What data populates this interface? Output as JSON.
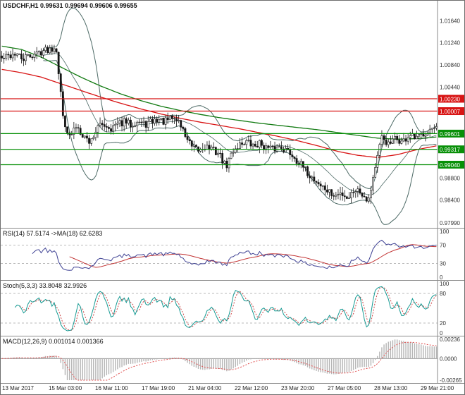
{
  "window": {
    "title": "USDCHF,H1"
  },
  "main_panel": {
    "title": "USDCHF,H1 0.99631 0.99694 0.99606 0.99655"
  },
  "rsi_panel": {
    "label": "RSI(14) 57.5174 ->MA(18) 62.6283"
  },
  "stoch_panel": {
    "label": "Stoch(5,3,3) 33.8048 32.9926"
  },
  "macd_panel": {
    "label": "MACD(12,26,9) 0.001014 0.001366"
  },
  "chart_data": {
    "type": "candlestick",
    "symbol": "USDCHF",
    "timeframe": "H1",
    "readout": {
      "open": 0.99631,
      "high": 0.99694,
      "low": 0.99606,
      "close": 0.99655
    },
    "x_labels": [
      "13 Mar 2017",
      "15 Mar 03:00",
      "16 Mar 11:00",
      "17 Mar 19:00",
      "21 Mar 04:00",
      "22 Mar 12:00",
      "23 Mar 20:00",
      "27 Mar 05:00",
      "28 Mar 13:00",
      "29 Mar 21:00"
    ],
    "main": {
      "ylim": [
        0.979,
        1.02
      ],
      "candle_count": 200,
      "y_axis_labels": [
        {
          "text": "1.01640",
          "price": 1.0164
        },
        {
          "text": "1.01240",
          "price": 1.0124
        },
        {
          "text": "1.00840",
          "price": 1.0084
        },
        {
          "text": "1.00440",
          "price": 1.0044
        },
        {
          "text": "0.98800",
          "price": 0.988
        },
        {
          "text": "0.98400",
          "price": 0.984
        },
        {
          "text": "0.97990",
          "price": 0.9799
        }
      ],
      "price_lines": [
        {
          "label": "1.00230",
          "price": 1.0023,
          "color": "#d81414"
        },
        {
          "label": "1.00007",
          "price": 1.00007,
          "color": "#d81414"
        },
        {
          "label": "0.99601",
          "price": 0.99601,
          "color": "#089008"
        },
        {
          "label": "0.99317",
          "price": 0.99317,
          "color": "#089008"
        },
        {
          "label": "0.99040",
          "price": 0.9904,
          "color": "#089008"
        }
      ],
      "anchor_closes": [
        1.0095,
        1.01,
        1.0105,
        1.0094,
        1.01,
        1.0104,
        1.011,
        1.0113,
        1.0118,
        0.9992,
        0.9952,
        0.9975,
        0.9958,
        0.9944,
        0.997,
        0.9978,
        0.997,
        0.9976,
        0.9981,
        0.9977,
        0.9983,
        0.9976,
        0.9981,
        0.9986,
        0.9981,
        0.9988,
        0.9984,
        0.9958,
        0.9934,
        0.9929,
        0.9938,
        0.9931,
        0.9924,
        0.9899,
        0.9929,
        0.9941,
        0.9946,
        0.9937,
        0.9943,
        0.9934,
        0.9931,
        0.9938,
        0.9929,
        0.9919,
        0.9904,
        0.9889,
        0.9877,
        0.9866,
        0.9856,
        0.9846,
        0.9853,
        0.9844,
        0.9861,
        0.9853,
        0.9841,
        0.9901,
        0.9954,
        0.9939,
        0.9951,
        0.9944,
        0.9957,
        0.9949,
        0.9961,
        0.9968,
        0.9966
      ],
      "ma_red_anchors": [
        1.0076,
        1.007,
        1.0062,
        1.005,
        1.0038,
        1.0026,
        1.0015,
        1.0005,
        0.9996,
        0.9988,
        0.9981,
        0.9975,
        0.9969,
        0.9962,
        0.9955,
        0.9947,
        0.9938,
        0.9928,
        0.9921,
        0.9917,
        0.9922,
        0.9931,
        0.9938
      ],
      "ma_green_anchors": [
        1.0118,
        1.0112,
        1.0098,
        1.008,
        1.0062,
        1.0046,
        1.0032,
        1.002,
        1.001,
        1.0002,
        0.9995,
        0.9989,
        0.9984,
        0.9979,
        0.9975,
        0.9971,
        0.9967,
        0.9962,
        0.9957,
        0.9952,
        0.995,
        0.9951,
        0.9954
      ],
      "bollinger": {
        "period": 20,
        "deviation": 2
      },
      "colors": {
        "candle": "#151515",
        "bollinger": "#4d6a66",
        "ma_red": "#d81414",
        "ma_green": "#117a11"
      }
    },
    "rsi": {
      "params": [
        14,
        18
      ],
      "last": 57.5174,
      "ma_last": 62.6283,
      "levels": [
        70,
        30
      ],
      "scale_labels": [
        {
          "text": "100",
          "value": 100
        },
        {
          "text": "70",
          "value": 70
        },
        {
          "text": "30",
          "value": 30
        },
        {
          "text": "0",
          "value": 0
        }
      ],
      "colors": {
        "line": "#3c3f92",
        "ma": "#c23434",
        "level": "#b9b9b9"
      }
    },
    "stoch": {
      "params": [
        5,
        3,
        3
      ],
      "last_k": 33.8048,
      "last_d": 32.9926,
      "levels": [
        80,
        20
      ],
      "scale_labels": [
        {
          "text": "100",
          "value": 100
        },
        {
          "text": "80",
          "value": 80
        },
        {
          "text": "20",
          "value": 20
        },
        {
          "text": "0",
          "value": 0
        }
      ],
      "colors": {
        "k": "#159a93",
        "d": "#cc4444",
        "level": "#b9b9b9"
      }
    },
    "macd": {
      "params": [
        12,
        26,
        9
      ],
      "last_macd": 0.001014,
      "last_signal": 0.001366,
      "ylim": [
        -0.00265,
        0.00236
      ],
      "scale_labels": [
        {
          "text": "0.00236",
          "value": 0.00236
        },
        {
          "text": "0.0000",
          "value": 0
        },
        {
          "text": "-0.00265",
          "value": -0.00265
        }
      ],
      "colors": {
        "hist": "#b5b5b5",
        "signal": "#e05050",
        "zero": "#9a9a9a"
      }
    }
  }
}
